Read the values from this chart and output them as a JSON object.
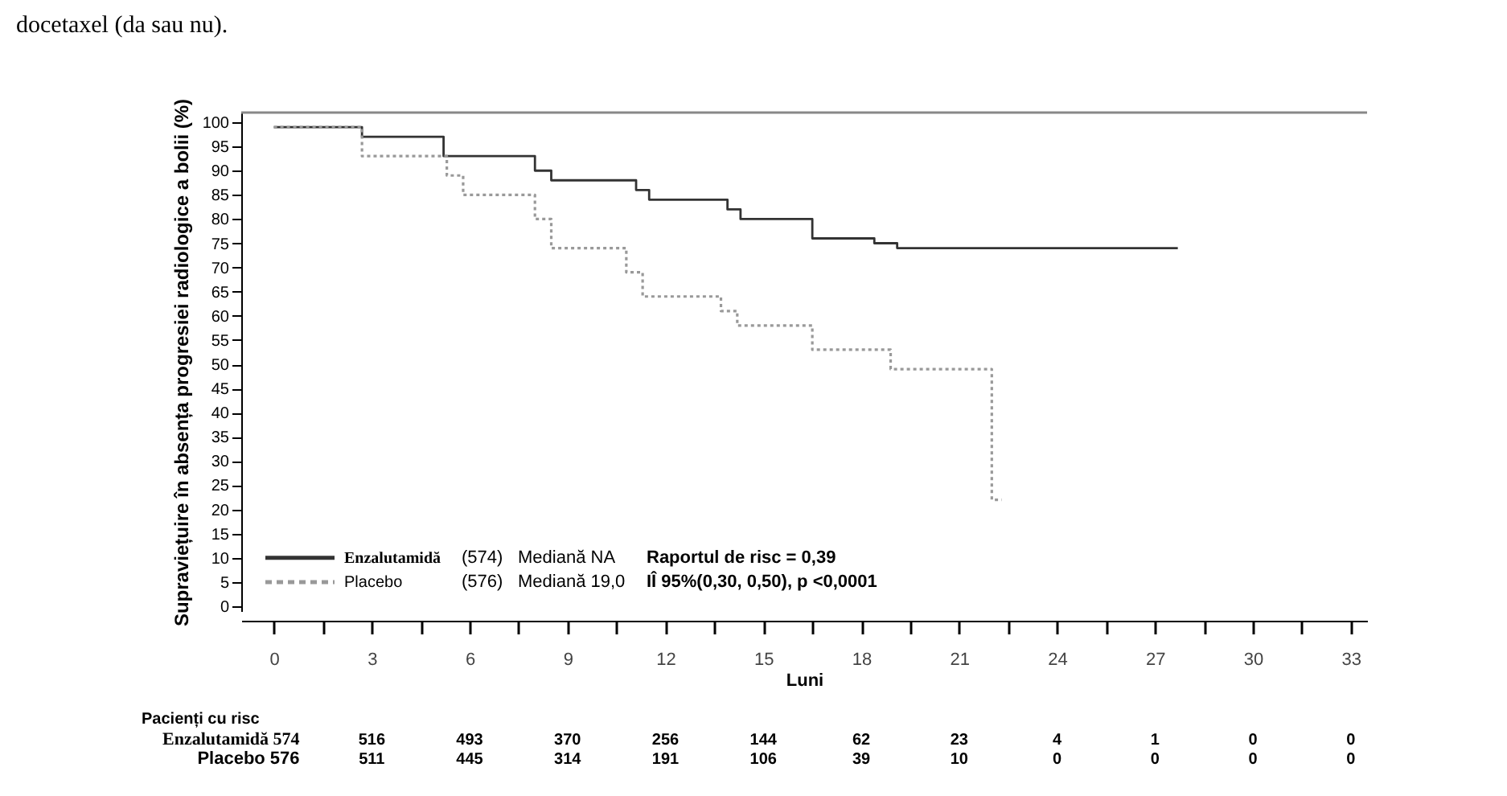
{
  "chart_data": {
    "type": "step",
    "ylabel": "Supraviețuire în absența progresiei radiologice a bolii (%)",
    "xlabel": "Luni",
    "xlim": [
      -1,
      33.5
    ],
    "xticks": [
      0,
      {
        "value": 1.5,
        "label": null
      },
      3,
      {
        "value": 4.5,
        "label": null
      },
      6,
      {
        "value": 7.5,
        "label": null
      },
      9,
      {
        "value": 10.5,
        "label": null
      },
      12,
      {
        "value": 13.5,
        "label": null
      },
      15,
      {
        "value": 16.5,
        "label": null
      },
      18,
      {
        "value": 19.5,
        "label": null
      },
      21,
      {
        "value": 22.5,
        "label": null
      },
      24,
      {
        "value": 25.5,
        "label": null
      },
      27,
      {
        "value": 28.5,
        "label": null
      },
      30,
      {
        "value": 31.5,
        "label": null
      },
      33
    ],
    "ylim": [
      -1,
      102
    ],
    "yticks": [
      0,
      5,
      10,
      15,
      20,
      25,
      30,
      35,
      40,
      45,
      50,
      55,
      60,
      65,
      70,
      75,
      80,
      85,
      90,
      95,
      100
    ],
    "grid": false,
    "legend": "bottom left",
    "series": [
      {
        "name": "Enzalutamidă",
        "color": "#333333",
        "line_style": "solid",
        "x": [
          0,
          2.7,
          5.2,
          8.0,
          8.5,
          11.1,
          11.5,
          13.9,
          14.3,
          16.5,
          18.4,
          19.1,
          27.7
        ],
        "values": [
          99,
          97,
          93,
          90,
          88,
          86,
          84,
          82,
          80,
          76,
          75,
          74,
          74
        ]
      },
      {
        "name": "Placebo",
        "color": "#999999",
        "line_style": "dotted",
        "x": [
          0,
          2.7,
          5.3,
          5.8,
          8.0,
          8.5,
          10.8,
          11.3,
          13.7,
          14.2,
          16.5,
          18.9,
          22.0,
          22.3
        ],
        "values": [
          99,
          93,
          89,
          85,
          80,
          74,
          69,
          64,
          61,
          58,
          53,
          49,
          22,
          22
        ]
      }
    ],
    "annotations": [
      "docetaxel (da sau nu).",
      "(574)",
      "Mediană NA",
      "Raportul de risc = 0,39",
      "(576)",
      "Mediană 19,0",
      "IÎ 95%(0,30, 0,50), p <0,0001",
      "Pacienți cu risc",
      "Enzalutamidă 574",
      "516",
      "493",
      "370",
      "256",
      "144",
      "62",
      "23",
      "4",
      "1",
      "0",
      "0",
      "Placebo 576",
      "511",
      "445",
      "314",
      "191",
      "106",
      "39",
      "10",
      "0",
      "0",
      "0",
      "0"
    ]
  }
}
